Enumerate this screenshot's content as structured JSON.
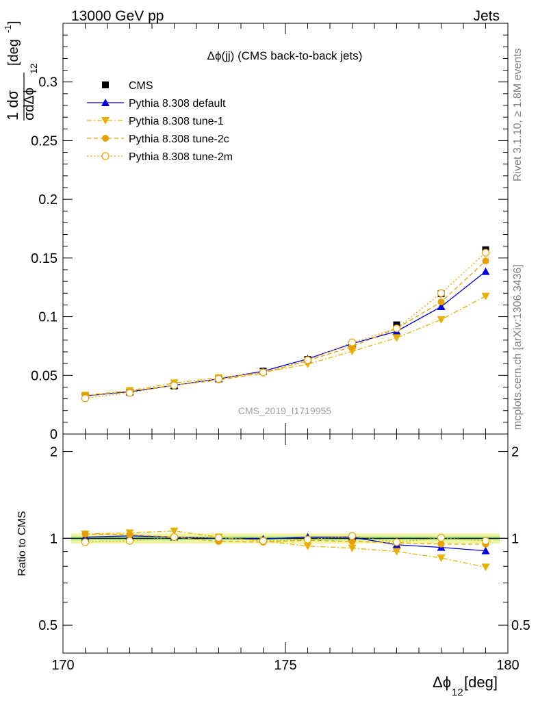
{
  "header": {
    "left": "13000 GeV pp",
    "right": "Jets"
  },
  "side_labels": {
    "upper": "Rivet 3.1.10, ≥ 1.8M events",
    "lower": "mcplots.cern.ch [arXiv:1306.3436]"
  },
  "watermark": "CMS_2019_I1719955",
  "chart_data": [
    {
      "type": "line",
      "title": "Δϕ(jj) (CMS back-to-back jets)",
      "ylabel_num": "1 dσ",
      "ylabel_den": "σdΔϕ",
      "ylabel_den_sub": "12",
      "ylabel_unit": "[deg",
      "ylabel_unit_sup": "-1",
      "ylabel_unit_close": "]",
      "xlim": [
        170,
        180
      ],
      "ylim": [
        0,
        0.35
      ],
      "yticks": [
        "0",
        "0.05",
        "0.1",
        "0.15",
        "0.2",
        "0.25",
        "0.3"
      ],
      "x": [
        170.5,
        171.5,
        172.5,
        173.5,
        174.5,
        175.5,
        176.5,
        177.5,
        178.5,
        179.5
      ],
      "legend_position": "top-left",
      "series": [
        {
          "name": "CMS",
          "color": "#000000",
          "marker": "square",
          "line": "none",
          "values": [
            0.032,
            0.0355,
            0.041,
            0.047,
            0.0535,
            0.0635,
            0.0765,
            0.093,
            0.1195,
            0.157
          ]
        },
        {
          "name": "Pythia 8.308 default",
          "color": "#0000dd",
          "marker": "triangle-up",
          "line": "solid",
          "values": [
            0.0325,
            0.036,
            0.0415,
            0.047,
            0.0535,
            0.064,
            0.077,
            0.0875,
            0.1085,
            0.1385
          ]
        },
        {
          "name": "Pythia 8.308 tune-1",
          "color": "#e8b000",
          "marker": "triangle-down",
          "line": "dashdot",
          "values": [
            0.033,
            0.037,
            0.0435,
            0.048,
            0.0525,
            0.0595,
            0.0705,
            0.082,
            0.0975,
            0.1175
          ]
        },
        {
          "name": "Pythia 8.308 tune-2c",
          "color": "#e8a000",
          "marker": "circle-filled",
          "line": "dashed",
          "values": [
            0.0325,
            0.0365,
            0.0415,
            0.046,
            0.052,
            0.0625,
            0.0745,
            0.09,
            0.1125,
            0.1475
          ]
        },
        {
          "name": "Pythia 8.308 tune-2m",
          "color": "#e8a000",
          "marker": "circle-open",
          "line": "dotted",
          "values": [
            0.0305,
            0.035,
            0.0415,
            0.047,
            0.0525,
            0.063,
            0.078,
            0.09,
            0.12,
            0.1545
          ]
        }
      ]
    },
    {
      "type": "line",
      "ylabel": "Ratio to CMS",
      "xlabel_main": "Δϕ",
      "xlabel_sub": "12",
      "xlabel_unit": " [deg]",
      "xlim": [
        170,
        180
      ],
      "ylim": [
        0.4,
        2.3
      ],
      "yscale": "log",
      "yticks": [
        "0.5",
        "1",
        "2"
      ],
      "xticks": [
        "170",
        "175",
        "180"
      ],
      "reference_band": [
        0.96,
        1.04
      ],
      "x": [
        170.5,
        171.5,
        172.5,
        173.5,
        174.5,
        175.5,
        176.5,
        177.5,
        178.5,
        179.5
      ],
      "series": [
        {
          "name": "Pythia 8.308 default",
          "values": [
            1.01,
            1.02,
            1.01,
            1.0,
            0.995,
            1.01,
            1.01,
            0.95,
            0.93,
            0.905
          ]
        },
        {
          "name": "Pythia 8.308 tune-1",
          "values": [
            1.035,
            1.045,
            1.06,
            1.01,
            0.98,
            0.94,
            0.925,
            0.9,
            0.855,
            0.795
          ]
        },
        {
          "name": "Pythia 8.308 tune-2c",
          "values": [
            1.035,
            1.03,
            1.01,
            0.975,
            0.97,
            0.985,
            0.975,
            0.965,
            0.955,
            0.955
          ]
        },
        {
          "name": "Pythia 8.308 tune-2m",
          "values": [
            0.97,
            0.98,
            1.01,
            1.005,
            0.98,
            0.99,
            1.02,
            0.97,
            1.005,
            0.98
          ]
        }
      ]
    }
  ]
}
